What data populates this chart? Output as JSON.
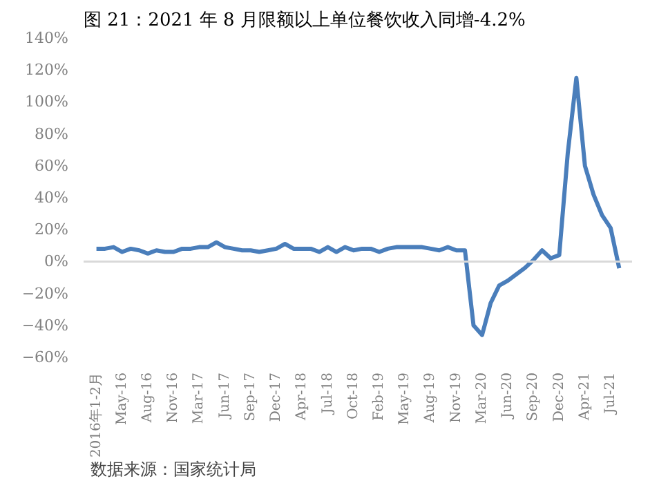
{
  "chart_data": {
    "type": "line",
    "title": "图 21：2021 年 8 月限额以上单位餐饮收入同增-4.2%",
    "categories": [
      "2016年1-2月",
      null,
      null,
      "May-16",
      null,
      null,
      "Aug-16",
      null,
      null,
      "Nov-16",
      null,
      null,
      "Mar-17",
      null,
      null,
      "Jun-17",
      null,
      null,
      "Sep-17",
      null,
      null,
      "Dec-17",
      null,
      null,
      "Apr-18",
      null,
      null,
      "Jul-18",
      null,
      null,
      "Oct-18",
      null,
      null,
      "Feb-19",
      null,
      null,
      "May-19",
      null,
      null,
      "Aug-19",
      null,
      null,
      "Nov-19",
      null,
      null,
      "Mar-20",
      null,
      null,
      "Jun-20",
      null,
      null,
      "Sep-20",
      null,
      null,
      "Dec-20",
      null,
      null,
      "Apr-21",
      null,
      null,
      "Jul-21",
      null
    ],
    "series": [
      {
        "color": "#4a7ebb",
        "values": [
          8,
          8,
          9,
          6,
          8,
          7,
          5,
          7,
          6,
          6,
          8,
          8,
          9,
          9,
          12,
          9,
          8,
          7,
          7,
          6,
          7,
          8,
          11,
          8,
          8,
          8,
          6,
          9,
          6,
          9,
          7,
          8,
          8,
          6,
          8,
          9,
          9,
          9,
          9,
          8,
          7,
          9,
          7,
          7,
          -40,
          -46,
          -26,
          -15,
          -12,
          -8,
          -4,
          1,
          7,
          2,
          4,
          68,
          115,
          60,
          42,
          29,
          21,
          -4.2
        ]
      }
    ],
    "ref_lines": [
      {
        "axis": "y",
        "value": 0,
        "color": "#d9d9d9"
      }
    ],
    "ylim": [
      -60,
      140
    ],
    "yticks": [
      {
        "value": -60,
        "label": "−60%"
      },
      {
        "value": -40,
        "label": "−40%"
      },
      {
        "value": -20,
        "label": "−20%"
      },
      {
        "value": 0,
        "label": "0%"
      },
      {
        "value": 20,
        "label": "20%"
      },
      {
        "value": 40,
        "label": "40%"
      },
      {
        "value": 60,
        "label": "60%"
      },
      {
        "value": 80,
        "label": "80%"
      },
      {
        "value": 100,
        "label": "100%"
      },
      {
        "value": 120,
        "label": "120%"
      },
      {
        "value": 140,
        "label": "140%"
      }
    ],
    "grid": false,
    "marker": "none",
    "line_style": "solid",
    "annotations": [
      "数据来源：国家统计局"
    ]
  }
}
